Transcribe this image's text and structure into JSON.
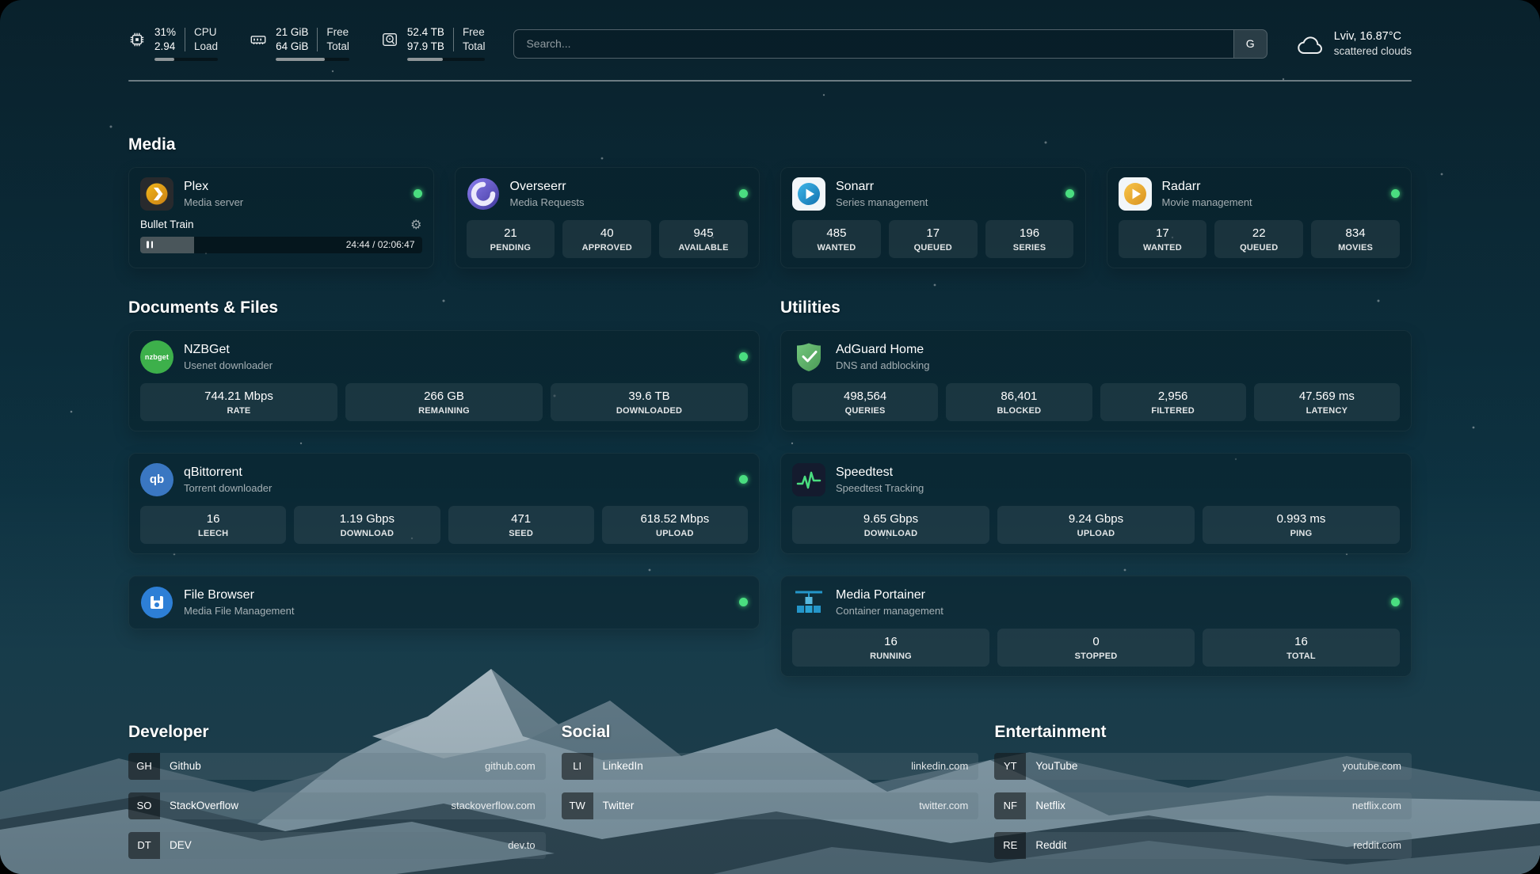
{
  "colors": {
    "status-green": "#4ade80",
    "nzbget-green": "#3db04b",
    "qbittorrent-blue": "#3a77c2",
    "accent-teal": "#0e3342"
  },
  "topbar": {
    "resources": [
      {
        "name": "cpu",
        "col1_top": "31%",
        "col1_bottom": "2.94",
        "col2_top": "CPU",
        "col2_bottom": "Load",
        "progress": 31
      },
      {
        "name": "memory",
        "col1_top": "21 GiB",
        "col1_bottom": "64 GiB",
        "col2_top": "Free",
        "col2_bottom": "Total",
        "progress": 67
      },
      {
        "name": "disk",
        "col1_top": "52.4 TB",
        "col1_bottom": "97.9 TB",
        "col2_top": "Free",
        "col2_bottom": "Total",
        "progress": 46
      }
    ],
    "search": {
      "placeholder": "Search...",
      "button_label": "G"
    },
    "weather": {
      "location": "Lviv, 16.87°C",
      "condition": "scattered clouds"
    }
  },
  "media": {
    "title": "Media",
    "plex": {
      "name": "Plex",
      "desc": "Media server",
      "now_playing": "Bullet Train",
      "time": "24:44 / 02:06:47",
      "progress": 19
    },
    "overseerr": {
      "name": "Overseerr",
      "desc": "Media Requests",
      "stats": [
        {
          "value": "21",
          "label": "PENDING"
        },
        {
          "value": "40",
          "label": "APPROVED"
        },
        {
          "value": "945",
          "label": "AVAILABLE"
        }
      ]
    },
    "sonarr": {
      "name": "Sonarr",
      "desc": "Series management",
      "stats": [
        {
          "value": "485",
          "label": "WANTED"
        },
        {
          "value": "17",
          "label": "QUEUED"
        },
        {
          "value": "196",
          "label": "SERIES"
        }
      ]
    },
    "radarr": {
      "name": "Radarr",
      "desc": "Movie management",
      "stats": [
        {
          "value": "17",
          "label": "WANTED"
        },
        {
          "value": "22",
          "label": "QUEUED"
        },
        {
          "value": "834",
          "label": "MOVIES"
        }
      ]
    }
  },
  "documents": {
    "title": "Documents & Files",
    "nzbget": {
      "name": "NZBGet",
      "desc": "Usenet downloader",
      "icon_text": "nzbget",
      "stats": [
        {
          "value": "744.21 Mbps",
          "label": "RATE"
        },
        {
          "value": "266 GB",
          "label": "REMAINING"
        },
        {
          "value": "39.6 TB",
          "label": "DOWNLOADED"
        }
      ]
    },
    "qbittorrent": {
      "name": "qBittorrent",
      "desc": "Torrent downloader",
      "icon_text": "qb",
      "stats": [
        {
          "value": "16",
          "label": "LEECH"
        },
        {
          "value": "1.19 Gbps",
          "label": "DOWNLOAD"
        },
        {
          "value": "471",
          "label": "SEED"
        },
        {
          "value": "618.52 Mbps",
          "label": "UPLOAD"
        }
      ]
    },
    "filebrowser": {
      "name": "File Browser",
      "desc": "Media File Management"
    }
  },
  "utilities": {
    "title": "Utilities",
    "adguard": {
      "name": "AdGuard Home",
      "desc": "DNS and adblocking",
      "stats": [
        {
          "value": "498,564",
          "label": "QUERIES"
        },
        {
          "value": "86,401",
          "label": "BLOCKED"
        },
        {
          "value": "2,956",
          "label": "FILTERED"
        },
        {
          "value": "47.569 ms",
          "label": "LATENCY"
        }
      ]
    },
    "speedtest": {
      "name": "Speedtest",
      "desc": "Speedtest Tracking",
      "stats": [
        {
          "value": "9.65 Gbps",
          "label": "DOWNLOAD"
        },
        {
          "value": "9.24 Gbps",
          "label": "UPLOAD"
        },
        {
          "value": "0.993 ms",
          "label": "PING"
        }
      ]
    },
    "portainer": {
      "name": "Media Portainer",
      "desc": "Container management",
      "stats": [
        {
          "value": "16",
          "label": "RUNNING"
        },
        {
          "value": "0",
          "label": "STOPPED"
        },
        {
          "value": "16",
          "label": "TOTAL"
        }
      ]
    }
  },
  "bookmarks": {
    "developer": {
      "title": "Developer",
      "items": [
        {
          "abbr": "GH",
          "name": "Github",
          "url": "github.com"
        },
        {
          "abbr": "SO",
          "name": "StackOverflow",
          "url": "stackoverflow.com"
        },
        {
          "abbr": "DT",
          "name": "DEV",
          "url": "dev.to"
        }
      ]
    },
    "social": {
      "title": "Social",
      "items": [
        {
          "abbr": "LI",
          "name": "LinkedIn",
          "url": "linkedin.com"
        },
        {
          "abbr": "TW",
          "name": "Twitter",
          "url": "twitter.com"
        }
      ]
    },
    "entertainment": {
      "title": "Entertainment",
      "items": [
        {
          "abbr": "YT",
          "name": "YouTube",
          "url": "youtube.com"
        },
        {
          "abbr": "NF",
          "name": "Netflix",
          "url": "netflix.com"
        },
        {
          "abbr": "RE",
          "name": "Reddit",
          "url": "reddit.com"
        }
      ]
    }
  }
}
